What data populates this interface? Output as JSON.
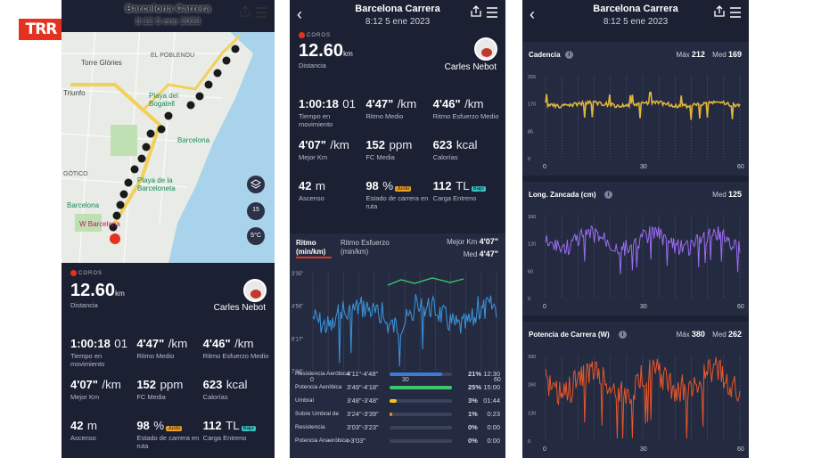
{
  "brand": {
    "logo_text": "TRR"
  },
  "header": {
    "title": "Barcelona Carrera",
    "date": "8:12 5 ene 2023"
  },
  "map": {
    "labels": [
      "EL POBLENOU",
      "Torre Glòries",
      "Triunfo",
      "Playa del Bogatell",
      "Barcelona",
      "Playa de la Barceloneta",
      "GÓTICO",
      "Barcelona",
      "W Barcelona"
    ],
    "controls": {
      "layers": "layers-icon",
      "temp": "5°C",
      "wind": "15"
    }
  },
  "summary": {
    "brand": "COROS",
    "distance_value": "12.60",
    "distance_unit": "km",
    "distance_label": "Distancia",
    "user_name": "Carles Nebot",
    "stats": [
      {
        "value": "1:00:18",
        "unit": "01",
        "label": "Tiempo en movimiento"
      },
      {
        "value": "4'47\"",
        "unit": "/km",
        "label": "Ritmo Medio"
      },
      {
        "value": "4'46\"",
        "unit": "/km",
        "label": "Ritmo Esfuerzo Medio"
      },
      {
        "value": "4'07\"",
        "unit": "/km",
        "label": "Mejor Km"
      },
      {
        "value": "152",
        "unit": "ppm",
        "label": "FC Media"
      },
      {
        "value": "623",
        "unit": "kcal",
        "label": "Calorías"
      },
      {
        "value": "42",
        "unit": "m",
        "label": "Ascenso"
      },
      {
        "value": "98",
        "unit": "%",
        "badge": "Justo",
        "label": "Estado de carrera en ruta"
      },
      {
        "value": "112",
        "unit": "TL",
        "badge": "Bajo",
        "label": "Carga Entreno"
      }
    ]
  },
  "pace_chart": {
    "tab1": "Ritmo (min/km)",
    "tab2": "Ritmo Esfuerzo (min/km)",
    "best_label": "Mejor Km",
    "best_value": "4'07\"",
    "avg_label": "Med",
    "avg_value": "4'47\"",
    "y_ticks": [
      "3'35\"",
      "4'56\"",
      "6'17\"",
      "7'38\""
    ],
    "x_ticks": [
      "0",
      "30",
      "60"
    ]
  },
  "zones": [
    {
      "name": "Resistencia Aeróbica",
      "range": "4'11\"-4'48\"",
      "pct": "21%",
      "frac": 0.21,
      "time": "12:30",
      "color": "#3a7bd5"
    },
    {
      "name": "Potencia Aeróbica",
      "range": "3'49\"-4'18\"",
      "pct": "25%",
      "frac": 0.25,
      "time": "15:00",
      "color": "#3ec46d"
    },
    {
      "name": "Umbral",
      "range": "3'48\"-3'48\"",
      "pct": "3%",
      "frac": 0.03,
      "time": "01:44",
      "color": "#f5c518"
    },
    {
      "name": "Sobre Umbral de",
      "range": "3'24\"-3'39\"",
      "pct": "1%",
      "frac": 0.01,
      "time": "0:23",
      "color": "#f08a24"
    },
    {
      "name": "Resistencia",
      "range": "3'03\"-3'23\"",
      "pct": "0%",
      "frac": 0,
      "time": "0:00",
      "color": "#e5321f"
    },
    {
      "name": "Potencia Anaeróbica",
      "range": ">3'03\"",
      "pct": "0%",
      "frac": 0,
      "time": "0:00",
      "color": "#b11a1a"
    }
  ],
  "cadence": {
    "title": "Cadencia",
    "max_label": "Máx",
    "max_value": "212",
    "avg_label": "Med",
    "avg_value": "169",
    "y_ticks": [
      "255",
      "170",
      "85",
      "0"
    ],
    "x_ticks": [
      "0",
      "30",
      "60"
    ]
  },
  "stride": {
    "title": "Long. Zancada (cm)",
    "avg_label": "Med",
    "avg_value": "125",
    "y_ticks": [
      "180",
      "120",
      "60",
      "0"
    ],
    "x_ticks": [
      "0",
      "30",
      "60"
    ]
  },
  "power": {
    "title": "Potencia de Carrera (W)",
    "max_label": "Máx",
    "max_value": "380",
    "avg_label": "Med",
    "avg_value": "262",
    "y_ticks": [
      "390",
      "260",
      "130",
      "0"
    ],
    "x_ticks": [
      "0",
      "30",
      "60"
    ]
  },
  "colors": {
    "panel": "#1c2033",
    "card": "#242a40",
    "accent": "#e5321f",
    "pace_line": "#3a8fd5",
    "cadence": "#e0b53a",
    "stride": "#9b6cf0",
    "power": "#e8572a"
  }
}
